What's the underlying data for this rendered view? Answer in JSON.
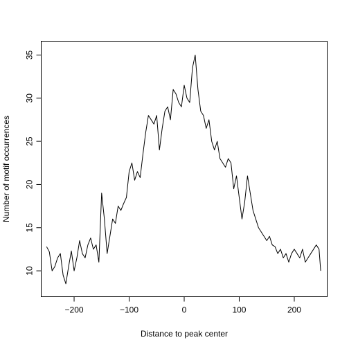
{
  "chart_data": {
    "type": "line",
    "title": "",
    "xlabel": "Distance to peak center",
    "ylabel": "Number of motif occurrences",
    "xlim": [
      -259.8,
      259.8
    ],
    "ylim": [
      7.0,
      36.6
    ],
    "x_ticks": [
      -200,
      -100,
      0,
      100,
      200
    ],
    "x_tick_labels": [
      "−200",
      "−100",
      "0",
      "100",
      "200"
    ],
    "y_ticks": [
      10,
      15,
      20,
      25,
      30,
      35
    ],
    "y_tick_labels": [
      "10",
      "15",
      "20",
      "25",
      "30",
      "35"
    ],
    "grid": false,
    "legend": "none",
    "series": [
      {
        "color": "#000000",
        "x": [
          -250,
          -245,
          -240,
          -235,
          -230,
          -225,
          -220,
          -215,
          -210,
          -205,
          -200,
          -195,
          -190,
          -185,
          -180,
          -175,
          -170,
          -165,
          -160,
          -155,
          -150,
          -145,
          -140,
          -135,
          -130,
          -125,
          -120,
          -115,
          -110,
          -105,
          -100,
          -95,
          -90,
          -85,
          -80,
          -75,
          -70,
          -65,
          -60,
          -55,
          -50,
          -45,
          -40,
          -35,
          -30,
          -25,
          -20,
          -15,
          -10,
          -5,
          0,
          5,
          10,
          15,
          20,
          25,
          30,
          35,
          40,
          45,
          50,
          55,
          60,
          65,
          70,
          75,
          80,
          85,
          90,
          95,
          100,
          105,
          110,
          115,
          120,
          125,
          130,
          135,
          140,
          145,
          150,
          155,
          160,
          165,
          170,
          175,
          180,
          185,
          190,
          195,
          200,
          205,
          210,
          215,
          220,
          225,
          230,
          235,
          240,
          245,
          248
        ],
        "y": [
          12.8,
          12.2,
          10.0,
          10.5,
          11.5,
          12.0,
          9.5,
          8.5,
          10.5,
          12.3,
          10.0,
          11.5,
          13.5,
          12.0,
          11.5,
          13.0,
          13.8,
          12.5,
          13.0,
          11.0,
          19.0,
          16.0,
          12.0,
          14.0,
          16.0,
          15.5,
          17.5,
          17.0,
          17.8,
          18.5,
          21.5,
          22.5,
          20.5,
          21.5,
          20.8,
          23.5,
          26.0,
          28.0,
          27.5,
          27.0,
          28.0,
          24.0,
          26.5,
          28.5,
          29.0,
          27.5,
          31.0,
          30.5,
          29.5,
          29.0,
          31.5,
          30.0,
          29.5,
          33.5,
          35.0,
          31.0,
          28.5,
          28.0,
          26.5,
          27.5,
          25.0,
          24.0,
          25.0,
          23.0,
          22.5,
          22.0,
          23.0,
          22.5,
          19.5,
          21.0,
          18.5,
          16.0,
          18.0,
          21.0,
          19.0,
          17.0,
          16.0,
          15.0,
          14.5,
          14.0,
          13.5,
          14.0,
          13.0,
          12.8,
          12.0,
          12.5,
          11.5,
          12.0,
          11.0,
          12.0,
          12.5,
          12.0,
          11.5,
          12.5,
          11.0,
          11.5,
          12.0,
          12.5,
          13.0,
          12.5,
          10.0
        ]
      }
    ]
  }
}
